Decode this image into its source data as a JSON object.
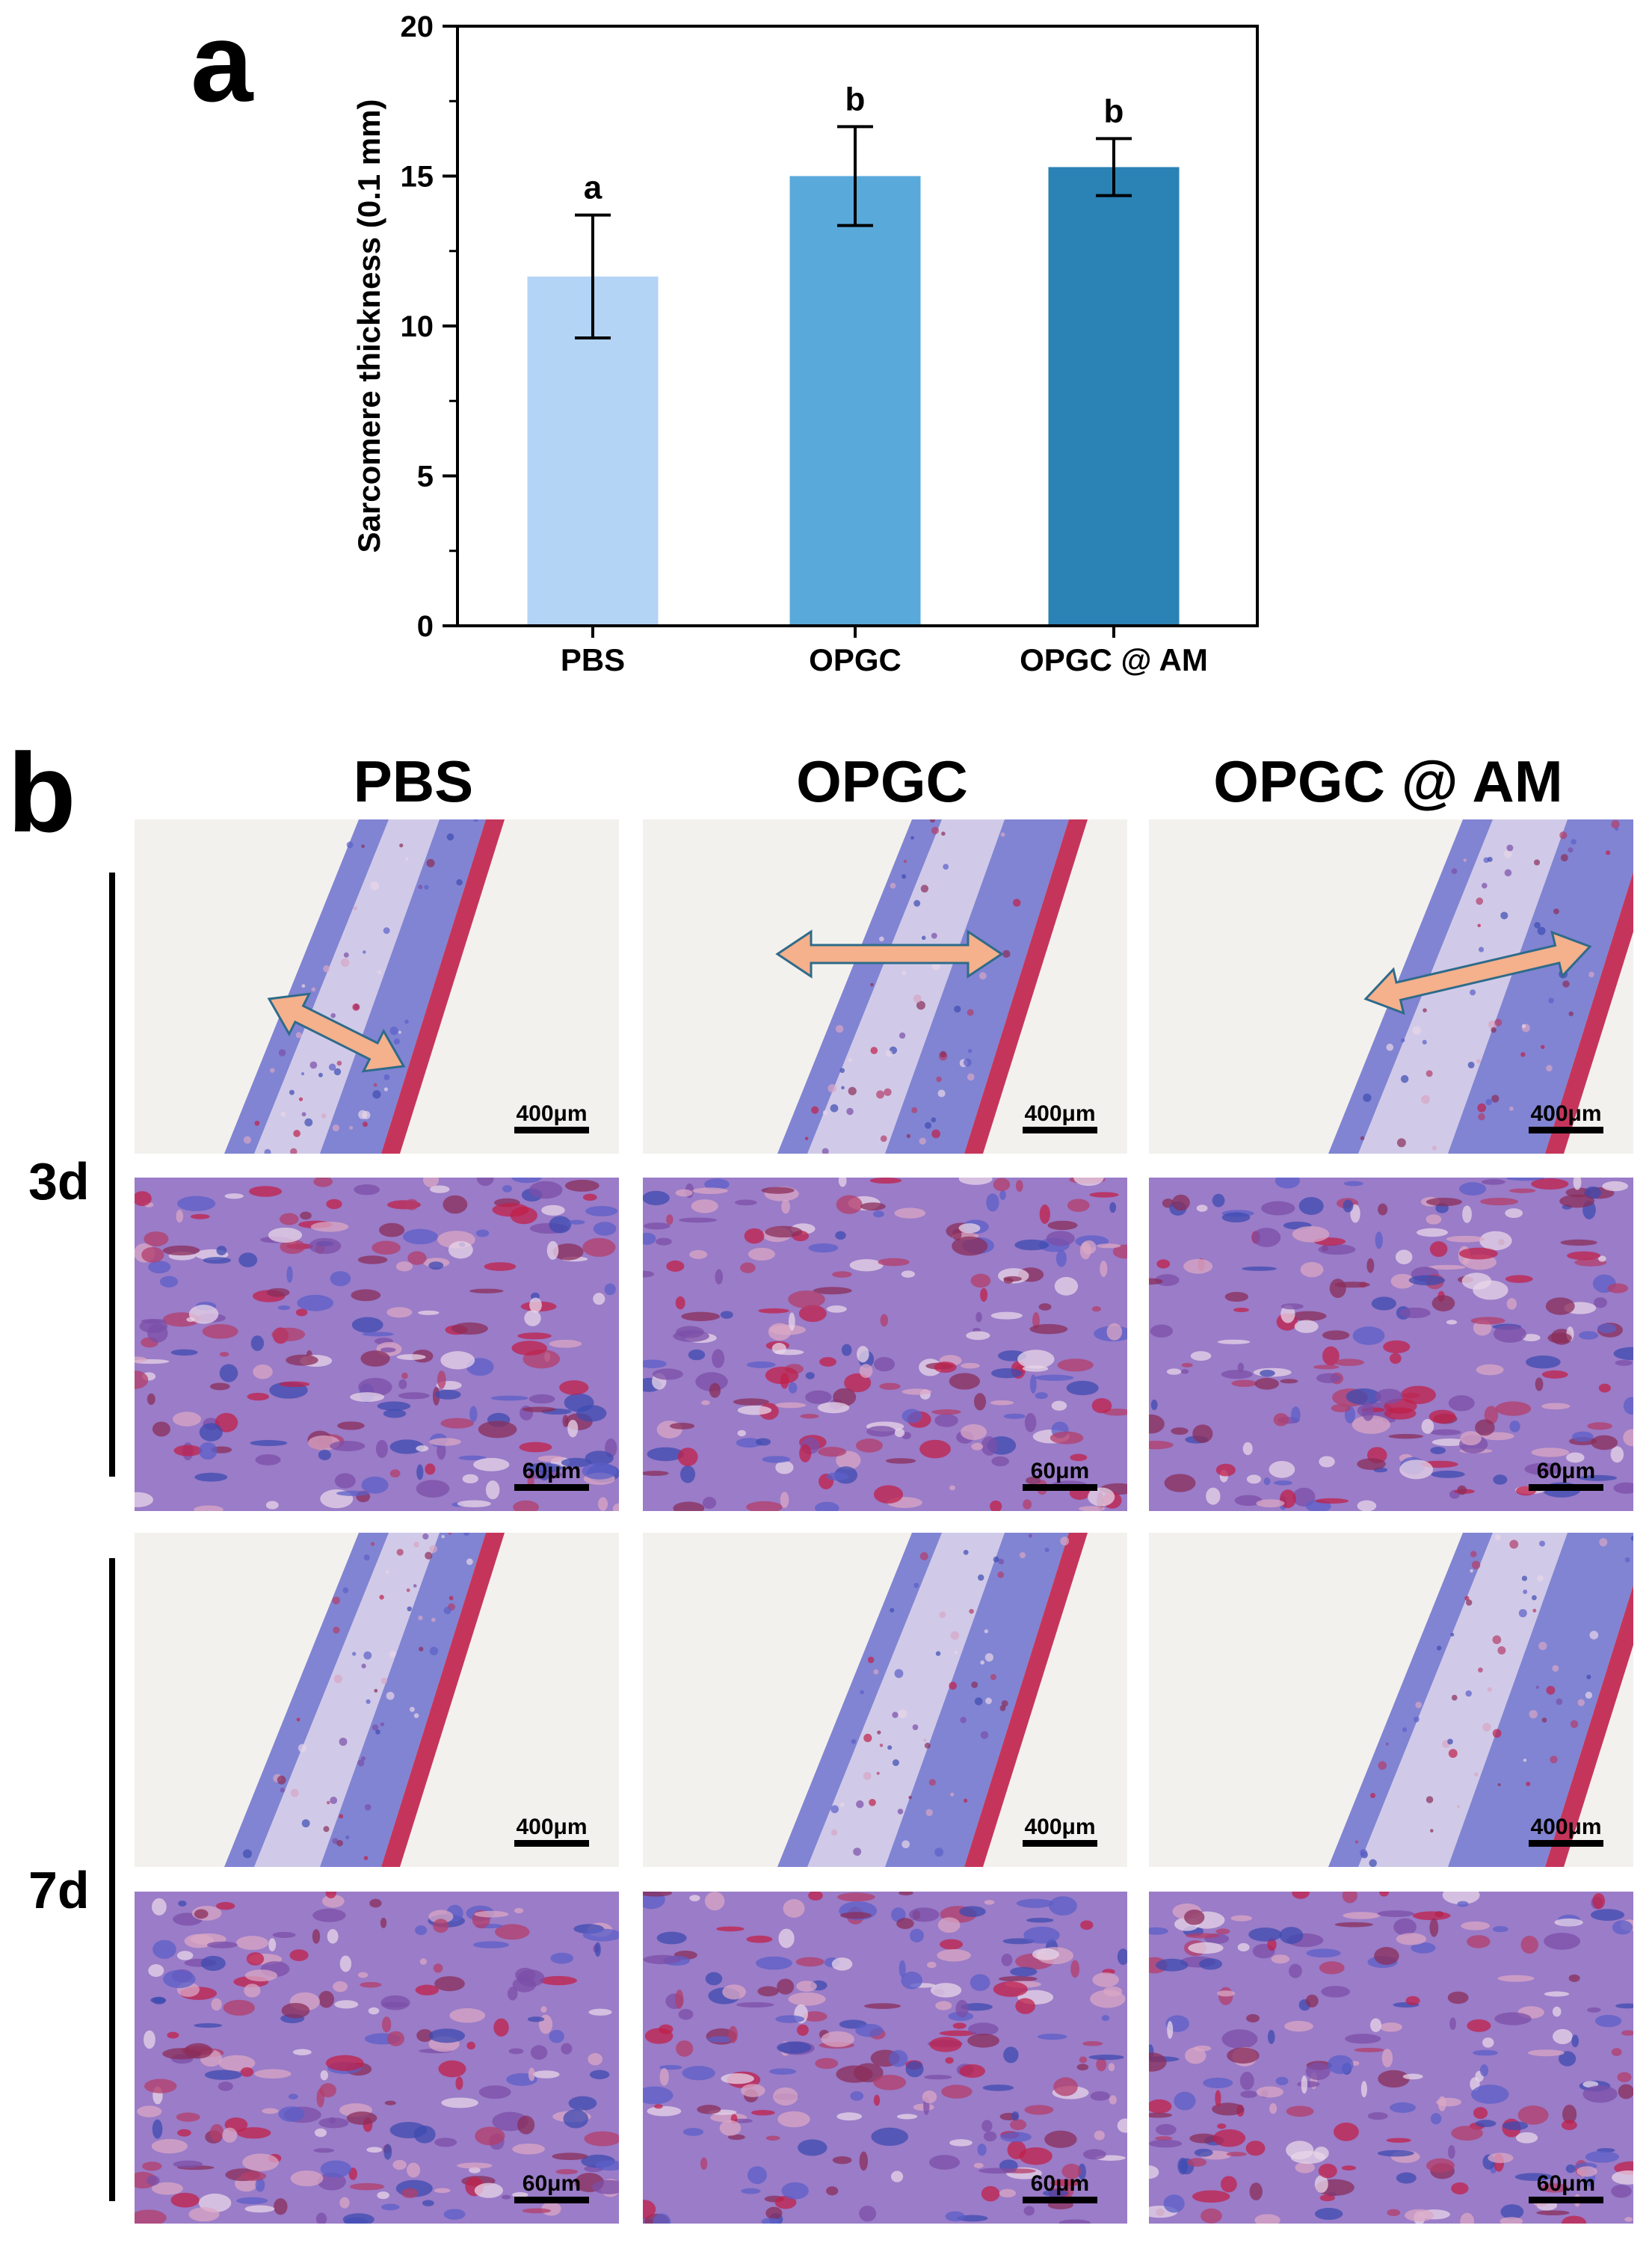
{
  "figure": {
    "panel_a_label": "a",
    "panel_b_label": "b"
  },
  "chart_data": {
    "type": "bar",
    "categories": [
      "PBS",
      "OPGC",
      "OPGC @ AM"
    ],
    "values": [
      11.65,
      15.0,
      15.3
    ],
    "error": [
      2.05,
      1.65,
      0.95
    ],
    "significance_letters": [
      "a",
      "b",
      "b"
    ],
    "colors": [
      "#b3d4f5",
      "#5aa9db",
      "#2a82b5"
    ],
    "ylabel": "Sarcomere thickness (0.1 mm)",
    "xlabel": "",
    "title": "",
    "ylim": [
      0,
      20
    ],
    "yticks": [
      0,
      5,
      10,
      15,
      20
    ],
    "grid": false
  },
  "panel_b": {
    "columns": [
      "PBS",
      "OPGC",
      "OPGC @ AM"
    ],
    "rows": [
      "3d",
      "7d"
    ],
    "scale_low_mag": "400μm",
    "scale_high_mag": "60μm",
    "stain_colors": {
      "collagen": "#5b5fc8",
      "muscle": "#c0204a",
      "background": "#f3f1ee",
      "arrow": "#f5b08c"
    }
  }
}
